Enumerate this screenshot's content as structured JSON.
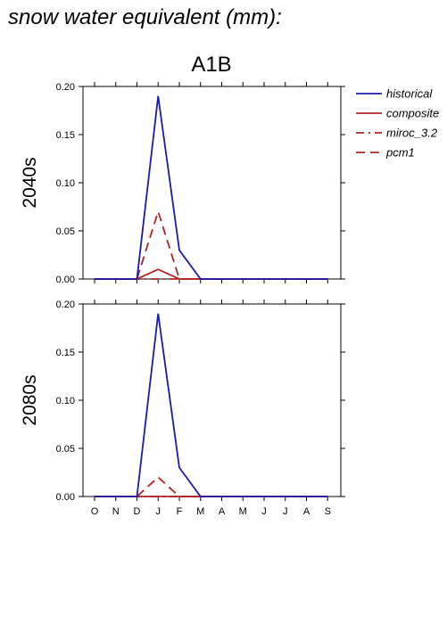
{
  "header": {
    "title": "snow water equivalent (mm):"
  },
  "colors": {
    "historical": "#1a1aad",
    "scenario": "#b22222",
    "axis": "#000000"
  },
  "legend": {
    "placement": "right",
    "items": [
      {
        "label": "historical",
        "color": "#1a1aad",
        "dash": "solid"
      },
      {
        "label": "composite",
        "color": "#b22222",
        "dash": "solid"
      },
      {
        "label": "miroc_3.2",
        "color": "#b22222",
        "dash": "dashdot"
      },
      {
        "label": "pcm1",
        "color": "#b22222",
        "dash": "dashed"
      }
    ]
  },
  "chart_data": [
    {
      "type": "line",
      "title": "A1B",
      "ylabel": "2040s",
      "xlabel": "",
      "categories": [
        "O",
        "N",
        "D",
        "J",
        "F",
        "M",
        "A",
        "M",
        "J",
        "J",
        "A",
        "S"
      ],
      "ylim": [
        0,
        0.2
      ],
      "yticks": [
        "0.00",
        "0.05",
        "0.10",
        "0.15",
        "0.20"
      ],
      "series": [
        {
          "name": "historical",
          "values": [
            0,
            0,
            0,
            0.19,
            0.03,
            0,
            0,
            0,
            0,
            0,
            0,
            0
          ]
        },
        {
          "name": "composite",
          "values": [
            0,
            0,
            0,
            0.01,
            0,
            0,
            0,
            0,
            0,
            0,
            0,
            0
          ]
        },
        {
          "name": "miroc_3.2",
          "values": [
            0,
            0,
            0,
            0,
            0,
            0,
            0,
            0,
            0,
            0,
            0,
            0
          ]
        },
        {
          "name": "pcm1",
          "values": [
            0,
            0,
            0,
            0.07,
            0,
            0,
            0,
            0,
            0,
            0,
            0,
            0
          ]
        }
      ]
    },
    {
      "type": "line",
      "title": "",
      "ylabel": "2080s",
      "xlabel": "",
      "categories": [
        "O",
        "N",
        "D",
        "J",
        "F",
        "M",
        "A",
        "M",
        "J",
        "J",
        "A",
        "S"
      ],
      "ylim": [
        0,
        0.2
      ],
      "yticks": [
        "0.00",
        "0.05",
        "0.10",
        "0.15",
        "0.20"
      ],
      "series": [
        {
          "name": "historical",
          "values": [
            0,
            0,
            0,
            0.19,
            0.03,
            0,
            0,
            0,
            0,
            0,
            0,
            0
          ]
        },
        {
          "name": "composite",
          "values": [
            0,
            0,
            0,
            0,
            0,
            0,
            0,
            0,
            0,
            0,
            0,
            0
          ]
        },
        {
          "name": "miroc_3.2",
          "values": [
            0,
            0,
            0,
            0,
            0,
            0,
            0,
            0,
            0,
            0,
            0,
            0
          ]
        },
        {
          "name": "pcm1",
          "values": [
            0,
            0,
            0,
            0.02,
            0,
            0,
            0,
            0,
            0,
            0,
            0,
            0
          ]
        }
      ]
    }
  ]
}
